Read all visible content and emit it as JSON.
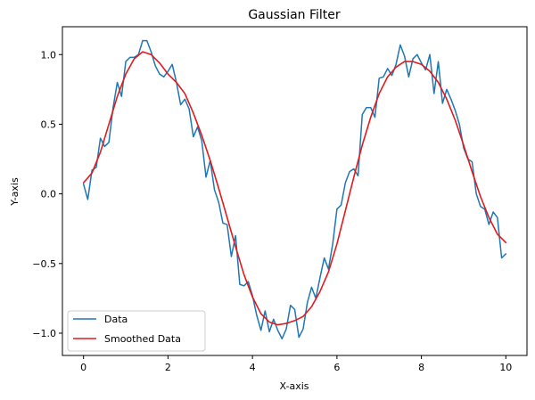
{
  "chart_data": {
    "type": "line",
    "title": "Gaussian Filter",
    "xlabel": "X-axis",
    "ylabel": "Y-axis",
    "xlim": [
      -0.5,
      10.5
    ],
    "ylim": [
      -1.16,
      1.2
    ],
    "xticks": [
      0,
      2,
      4,
      6,
      8,
      10
    ],
    "xtick_labels": [
      "0",
      "2",
      "4",
      "6",
      "8",
      "10"
    ],
    "yticks": [
      -1.0,
      -0.5,
      0.0,
      0.5,
      1.0
    ],
    "ytick_labels": [
      "−1.0",
      "−0.5",
      "0.0",
      "0.5",
      "1.0"
    ],
    "grid": false,
    "legend_position": "lower-left",
    "series": [
      {
        "name": "Data",
        "color": "#1f77b4",
        "x": [
          0.0,
          0.1,
          0.2,
          0.3,
          0.4,
          0.5,
          0.6,
          0.7,
          0.8,
          0.9,
          1.0,
          1.1,
          1.2,
          1.3,
          1.4,
          1.5,
          1.6,
          1.7,
          1.8,
          1.9,
          2.0,
          2.1,
          2.2,
          2.3,
          2.4,
          2.5,
          2.6,
          2.7,
          2.8,
          2.9,
          3.0,
          3.1,
          3.2,
          3.3,
          3.4,
          3.5,
          3.6,
          3.7,
          3.8,
          3.9,
          4.0,
          4.1,
          4.2,
          4.3,
          4.4,
          4.5,
          4.6,
          4.7,
          4.8,
          4.9,
          5.0,
          5.1,
          5.2,
          5.3,
          5.4,
          5.5,
          5.6,
          5.7,
          5.8,
          5.9,
          6.0,
          6.1,
          6.2,
          6.3,
          6.4,
          6.5,
          6.6,
          6.7,
          6.8,
          6.9,
          7.0,
          7.1,
          7.2,
          7.3,
          7.4,
          7.5,
          7.6,
          7.7,
          7.8,
          7.9,
          8.0,
          8.1,
          8.2,
          8.3,
          8.4,
          8.5,
          8.6,
          8.7,
          8.8,
          8.9,
          9.0,
          9.1,
          9.2,
          9.3,
          9.4,
          9.5,
          9.6,
          9.7,
          9.8,
          9.9,
          10.0
        ],
        "values": [
          0.07,
          -0.04,
          0.17,
          0.19,
          0.4,
          0.34,
          0.37,
          0.62,
          0.8,
          0.7,
          0.95,
          0.98,
          0.98,
          1.0,
          1.1,
          1.1,
          1.02,
          0.92,
          0.86,
          0.84,
          0.88,
          0.93,
          0.8,
          0.64,
          0.68,
          0.61,
          0.41,
          0.48,
          0.38,
          0.12,
          0.24,
          0.03,
          -0.06,
          -0.21,
          -0.22,
          -0.45,
          -0.3,
          -0.65,
          -0.66,
          -0.63,
          -0.73,
          -0.87,
          -0.98,
          -0.84,
          -0.99,
          -0.9,
          -0.98,
          -1.04,
          -0.97,
          -0.8,
          -0.83,
          -1.03,
          -0.97,
          -0.78,
          -0.67,
          -0.75,
          -0.6,
          -0.46,
          -0.54,
          -0.36,
          -0.11,
          -0.08,
          0.08,
          0.16,
          0.18,
          0.13,
          0.57,
          0.62,
          0.62,
          0.55,
          0.83,
          0.84,
          0.9,
          0.85,
          0.93,
          1.07,
          0.99,
          0.84,
          0.97,
          1.0,
          0.94,
          0.89,
          1.0,
          0.72,
          0.95,
          0.65,
          0.75,
          0.68,
          0.6,
          0.5,
          0.33,
          0.25,
          0.23,
          0.0,
          -0.09,
          -0.11,
          -0.22,
          -0.13,
          -0.17,
          -0.46,
          -0.43
        ]
      },
      {
        "name": "Smoothed Data",
        "color": "#e31a1c",
        "x": [
          0.0,
          0.2,
          0.4,
          0.6,
          0.8,
          1.0,
          1.2,
          1.4,
          1.6,
          1.8,
          2.0,
          2.2,
          2.4,
          2.6,
          2.8,
          3.0,
          3.2,
          3.4,
          3.6,
          3.8,
          4.0,
          4.2,
          4.4,
          4.6,
          4.8,
          5.0,
          5.2,
          5.4,
          5.6,
          5.8,
          6.0,
          6.2,
          6.4,
          6.6,
          6.8,
          7.0,
          7.2,
          7.4,
          7.6,
          7.8,
          8.0,
          8.2,
          8.4,
          8.6,
          8.8,
          9.0,
          9.2,
          9.4,
          9.6,
          9.8,
          10.0
        ],
        "values": [
          0.08,
          0.15,
          0.3,
          0.5,
          0.7,
          0.86,
          0.97,
          1.02,
          1.0,
          0.94,
          0.86,
          0.8,
          0.72,
          0.58,
          0.42,
          0.24,
          0.04,
          -0.17,
          -0.38,
          -0.58,
          -0.74,
          -0.86,
          -0.92,
          -0.94,
          -0.93,
          -0.91,
          -0.88,
          -0.81,
          -0.7,
          -0.56,
          -0.36,
          -0.12,
          0.12,
          0.35,
          0.55,
          0.72,
          0.84,
          0.91,
          0.95,
          0.95,
          0.93,
          0.88,
          0.8,
          0.68,
          0.53,
          0.35,
          0.16,
          -0.02,
          -0.17,
          -0.29,
          -0.35
        ]
      }
    ]
  }
}
